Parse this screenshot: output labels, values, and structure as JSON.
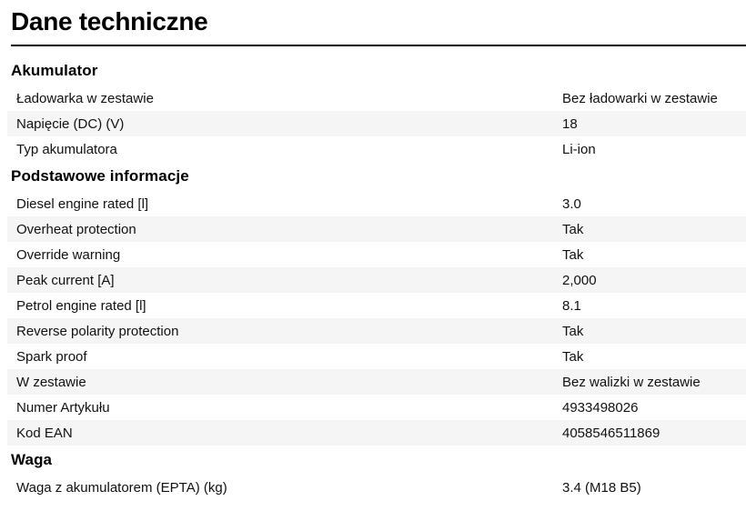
{
  "page": {
    "title": "Dane techniczne"
  },
  "sections": [
    {
      "heading": "Akumulator",
      "rows": [
        {
          "label": "Ładowarka w zestawie",
          "value": "Bez ładowarki w zestawie"
        },
        {
          "label": "Napięcie (DC) (V)",
          "value": "18"
        },
        {
          "label": "Typ akumulatora",
          "value": "Li-ion"
        }
      ]
    },
    {
      "heading": "Podstawowe informacje",
      "rows": [
        {
          "label": "Diesel engine rated [l]",
          "value": "3.0"
        },
        {
          "label": "Overheat protection",
          "value": "Tak"
        },
        {
          "label": "Override warning",
          "value": "Tak"
        },
        {
          "label": "Peak current [A]",
          "value": "2,000"
        },
        {
          "label": "Petrol engine rated [l]",
          "value": "8.1"
        },
        {
          "label": "Reverse polarity protection",
          "value": "Tak"
        },
        {
          "label": "Spark proof",
          "value": "Tak"
        },
        {
          "label": "W zestawie",
          "value": "Bez walizki w zestawie"
        },
        {
          "label": "Numer Artykułu",
          "value": "4933498026"
        },
        {
          "label": "Kod EAN",
          "value": "4058546511869"
        }
      ]
    },
    {
      "heading": "Waga",
      "rows": [
        {
          "label": "Waga z akumulatorem (EPTA) (kg)",
          "value": "3.4 (M18 B5)"
        }
      ]
    }
  ],
  "colors": {
    "text": "#111111",
    "heading_text": "#000000",
    "row_alt_bg": "#f5f5f5",
    "rule": "#000000"
  }
}
